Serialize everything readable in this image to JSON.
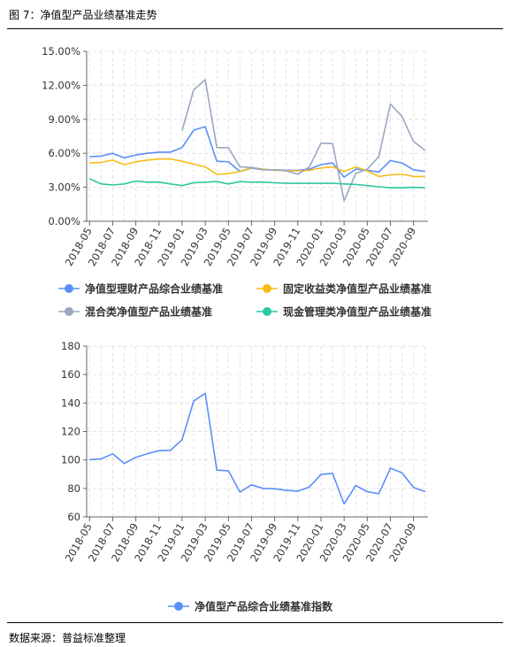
{
  "figure": {
    "title": "图 7：净值型产品业绩基准走势",
    "source": "数据来源：普益标准整理"
  },
  "chart_data": [
    {
      "type": "line",
      "title": "",
      "xlabel": "",
      "ylabel": "",
      "ylim": [
        0,
        15
      ],
      "y_ticks": [
        "0.00%",
        "3.00%",
        "6.00%",
        "9.00%",
        "12.00%",
        "15.00%"
      ],
      "x_ticks": [
        "2018-05",
        "2018-07",
        "2018-09",
        "2018-11",
        "2019-01",
        "2019-03",
        "2019-05",
        "2019-07",
        "2019-09",
        "2019-11",
        "2020-01",
        "2020-03",
        "2020-05",
        "2020-07",
        "2020-09"
      ],
      "grid": true,
      "legend_position": "bottom",
      "categories": [
        "2018-05",
        "2018-06",
        "2018-07",
        "2018-08",
        "2018-09",
        "2018-10",
        "2018-11",
        "2018-12",
        "2019-01",
        "2019-02",
        "2019-03",
        "2019-04",
        "2019-05",
        "2019-06",
        "2019-07",
        "2019-08",
        "2019-09",
        "2019-10",
        "2019-11",
        "2019-12",
        "2020-01",
        "2020-02",
        "2020-03",
        "2020-04",
        "2020-05",
        "2020-06",
        "2020-07",
        "2020-08",
        "2020-09",
        "2020-10"
      ],
      "series": [
        {
          "name": "净值型理财产品综合业绩基准",
          "color": "#5b8ff9",
          "values": [
            5.7,
            5.75,
            6.0,
            5.6,
            5.85,
            6.0,
            6.1,
            6.1,
            6.5,
            8.05,
            8.35,
            5.3,
            5.25,
            4.4,
            4.7,
            4.55,
            4.55,
            4.5,
            4.5,
            4.6,
            5.0,
            5.15,
            3.9,
            4.6,
            4.5,
            4.35,
            5.35,
            5.15,
            4.55,
            4.4
          ]
        },
        {
          "name": "固定收益类净值型产品业绩基准",
          "color": "#f6bd16",
          "values": [
            5.15,
            5.2,
            5.4,
            5.0,
            5.25,
            5.4,
            5.5,
            5.5,
            5.3,
            5.05,
            4.8,
            4.15,
            4.2,
            4.4,
            4.75,
            4.6,
            4.5,
            4.45,
            4.45,
            4.5,
            4.7,
            4.8,
            4.4,
            4.8,
            4.45,
            3.95,
            4.1,
            4.15,
            3.95,
            3.95
          ]
        },
        {
          "name": "混合类净值型产品业绩基准",
          "color": "#9aa7c0",
          "values": [
            null,
            null,
            null,
            null,
            null,
            null,
            null,
            null,
            8.0,
            11.6,
            12.5,
            6.5,
            6.5,
            4.8,
            4.75,
            4.55,
            4.55,
            4.45,
            4.15,
            4.8,
            6.9,
            6.85,
            1.8,
            4.2,
            4.6,
            5.7,
            10.35,
            9.25,
            7.05,
            6.25
          ]
        },
        {
          "name": "现金管理类净值型产品业绩基准",
          "color": "#2ec7a0",
          "values": [
            3.75,
            3.3,
            3.2,
            3.3,
            3.55,
            3.45,
            3.45,
            3.3,
            3.15,
            3.4,
            3.45,
            3.5,
            3.3,
            3.5,
            3.45,
            3.45,
            3.4,
            3.35,
            3.35,
            3.35,
            3.35,
            3.35,
            3.3,
            3.25,
            3.15,
            3.05,
            2.95,
            2.95,
            3.0,
            2.95
          ]
        }
      ]
    },
    {
      "type": "line",
      "title": "",
      "xlabel": "",
      "ylabel": "",
      "ylim": [
        60,
        180
      ],
      "y_ticks": [
        "60",
        "80",
        "100",
        "120",
        "140",
        "160",
        "180"
      ],
      "x_ticks": [
        "2018-05",
        "2018-07",
        "2018-09",
        "2018-11",
        "2019-01",
        "2019-03",
        "2019-05",
        "2019-07",
        "2019-09",
        "2019-11",
        "2020-01",
        "2020-03",
        "2020-05",
        "2020-07",
        "2020-09"
      ],
      "grid": true,
      "legend_position": "bottom",
      "categories": [
        "2018-05",
        "2018-06",
        "2018-07",
        "2018-08",
        "2018-09",
        "2018-10",
        "2018-11",
        "2018-12",
        "2019-01",
        "2019-02",
        "2019-03",
        "2019-04",
        "2019-05",
        "2019-06",
        "2019-07",
        "2019-08",
        "2019-09",
        "2019-10",
        "2019-11",
        "2019-12",
        "2020-01",
        "2020-02",
        "2020-03",
        "2020-04",
        "2020-05",
        "2020-06",
        "2020-07",
        "2020-08",
        "2020-09",
        "2020-10"
      ],
      "series": [
        {
          "name": "净值型产品综合业绩基准指数",
          "color": "#5b8ff9",
          "values": [
            100.2,
            100.8,
            104.3,
            97.6,
            101.8,
            104.4,
            106.5,
            106.8,
            114.3,
            141.4,
            146.8,
            92.8,
            92.4,
            77.4,
            82.5,
            80.0,
            79.8,
            78.7,
            78.1,
            81.0,
            89.8,
            90.6,
            69.1,
            82.0,
            77.7,
            76.3,
            94.2,
            91.0,
            80.7,
            77.8
          ]
        }
      ]
    }
  ]
}
